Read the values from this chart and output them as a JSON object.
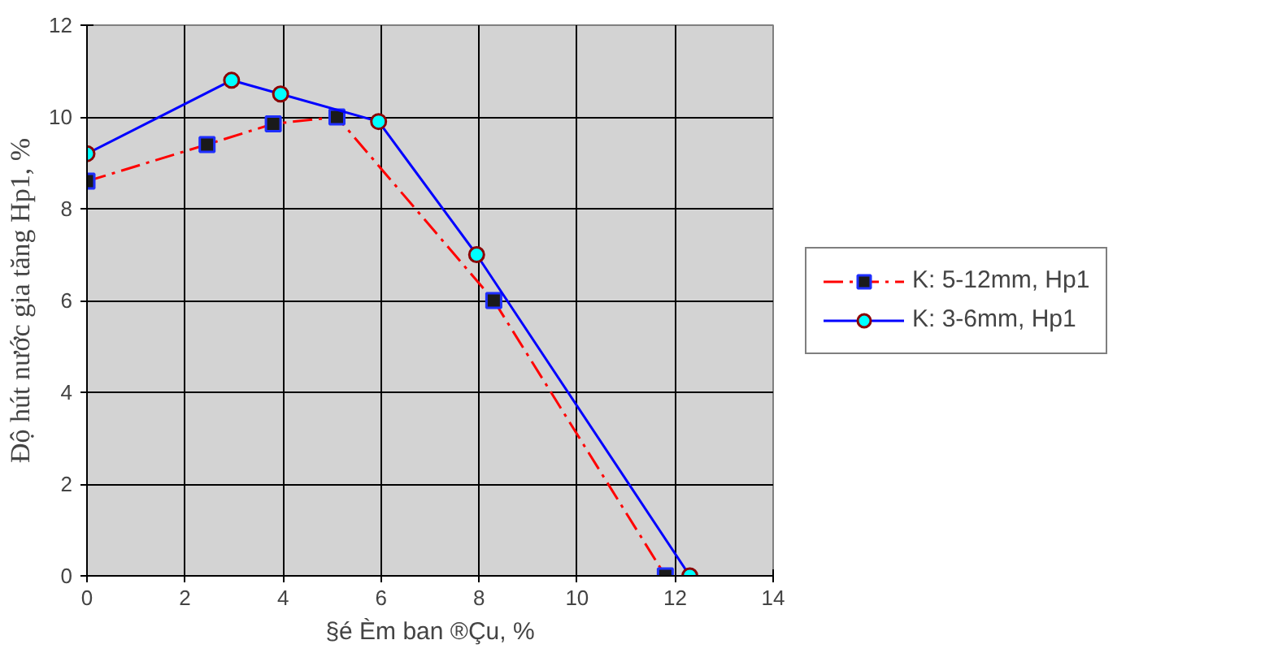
{
  "chart_data": {
    "type": "line",
    "xlabel": "§é Èm ban ®Çu, %",
    "ylabel": "Độ hút nước gia tăng Hp1, %",
    "xlim": [
      0,
      14
    ],
    "xticks": [
      0,
      2,
      4,
      6,
      8,
      10,
      12,
      14
    ],
    "ylim": [
      0,
      12
    ],
    "yticks": [
      0,
      2,
      4,
      6,
      8,
      10,
      12
    ],
    "grid": true,
    "legend": "right",
    "series": [
      {
        "name": "K: 5-12mm, Hp1",
        "color": "#ff0000",
        "marker": "square",
        "line_style": "dashed",
        "x": [
          0,
          2.45,
          3.8,
          5.1,
          8.3,
          11.8
        ],
        "values": [
          8.6,
          9.4,
          9.85,
          10.0,
          6.0,
          0
        ]
      },
      {
        "name": "K: 3-6mm, Hp1",
        "color": "#0000ff",
        "marker": "circle",
        "line_style": "solid",
        "x": [
          0,
          2.95,
          3.95,
          5.95,
          7.95,
          12.3
        ],
        "values": [
          9.2,
          10.8,
          10.5,
          9.9,
          7.0,
          0
        ]
      }
    ]
  }
}
